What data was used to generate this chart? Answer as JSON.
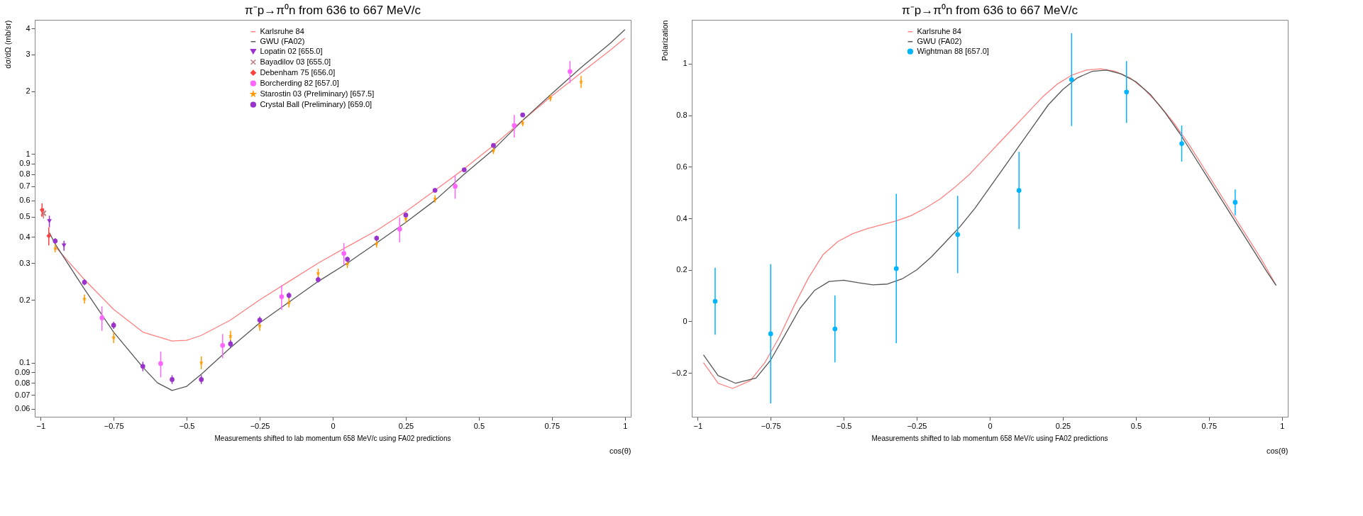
{
  "chart_data": [
    {
      "type": "scatter",
      "title": "π⁻p→π⁰n from 636 to 667 MeV/c",
      "xlabel": "cos(θ)",
      "ylabel": "dσ/dΩ (mb/sr)",
      "annotations": [
        "Measurements shifted to lab momentum 658 MeV/c using FA02 predictions"
      ],
      "log": true,
      "grid": false,
      "legend": "top",
      "xlim": [
        -1.02,
        1.02
      ],
      "xticks": [
        -1,
        -0.75,
        -0.5,
        -0.25,
        0,
        0.25,
        0.5,
        0.75,
        1
      ],
      "ylim": [
        0.055,
        4.4
      ],
      "yticks": [
        0.06,
        0.07,
        0.08,
        0.09,
        0.1,
        0.2,
        0.3,
        0.4,
        0.5,
        0.6,
        0.7,
        0.8,
        0.9,
        1,
        2,
        3,
        4
      ],
      "series": [
        {
          "name": "Karlsruhe 84",
          "type": "line",
          "color": "#ff8080",
          "line_style": "solid",
          "x": [
            -0.95,
            -0.85,
            -0.75,
            -0.65,
            -0.55,
            -0.5,
            -0.45,
            -0.35,
            -0.25,
            -0.15,
            -0.05,
            0.05,
            0.15,
            0.25,
            0.35,
            0.45,
            0.55,
            0.65,
            0.75,
            0.85,
            0.95,
            1.0
          ],
          "values": [
            0.36,
            0.25,
            0.18,
            0.14,
            0.127,
            0.128,
            0.135,
            0.16,
            0.2,
            0.245,
            0.3,
            0.36,
            0.43,
            0.53,
            0.67,
            0.85,
            1.1,
            1.45,
            1.9,
            2.45,
            3.15,
            3.6
          ]
        },
        {
          "name": "GWU (FA02)",
          "type": "line",
          "color": "#555555",
          "line_style": "solid",
          "x": [
            -0.97,
            -0.95,
            -0.85,
            -0.75,
            -0.65,
            -0.6,
            -0.55,
            -0.5,
            -0.45,
            -0.35,
            -0.25,
            -0.15,
            -0.05,
            0.05,
            0.15,
            0.25,
            0.35,
            0.45,
            0.55,
            0.65,
            0.75,
            0.85,
            0.95,
            1.0
          ],
          "values": [
            0.42,
            0.37,
            0.225,
            0.14,
            0.095,
            0.08,
            0.0735,
            0.077,
            0.088,
            0.118,
            0.155,
            0.195,
            0.245,
            0.3,
            0.375,
            0.47,
            0.6,
            0.8,
            1.05,
            1.45,
            1.95,
            2.6,
            3.4,
            3.95
          ]
        },
        {
          "name": "Lopatin 02  [655.0]",
          "color": "#9b30d0",
          "marker": "triangle",
          "x": [
            -0.97,
            -0.92
          ],
          "values": [
            0.476,
            0.364
          ],
          "errors": [
            0.03,
            0.02
          ]
        },
        {
          "name": "Bayadilov 03  [655.0]",
          "color": "#c08080",
          "marker": "cross",
          "x": [
            -0.99
          ],
          "values": [
            0.52
          ],
          "errors": [
            0.03
          ]
        },
        {
          "name": "Debenham 75  [656.0]",
          "color": "#ff4040",
          "marker": "diamond",
          "x": [
            -0.995,
            -0.972
          ],
          "values": [
            0.54,
            0.405
          ],
          "errors": [
            0.04,
            0.04
          ]
        },
        {
          "name": "Borcherding 82  [657.0]",
          "color": "#ff66ff",
          "marker": "circle",
          "x": [
            -0.79,
            -0.589,
            -0.377,
            -0.175,
            0.038,
            0.229,
            0.419,
            0.621,
            0.812
          ],
          "values": [
            0.164,
            0.099,
            0.121,
            0.207,
            0.334,
            0.437,
            0.7,
            1.37,
            2.49
          ],
          "errors": [
            0.022,
            0.014,
            0.016,
            0.028,
            0.04,
            0.06,
            0.09,
            0.17,
            0.3
          ]
        },
        {
          "name": "Starostin 03 (Preliminary)  [657.5]",
          "color": "#ff9900",
          "marker": "star",
          "x": [
            -0.95,
            -0.85,
            -0.75,
            -0.45,
            -0.35,
            -0.25,
            -0.15,
            -0.05,
            0.05,
            0.15,
            0.25,
            0.35,
            0.55,
            0.65,
            0.745,
            0.85
          ],
          "values": [
            0.353,
            0.202,
            0.132,
            0.1,
            0.134,
            0.15,
            0.194,
            0.268,
            0.298,
            0.372,
            0.49,
            0.61,
            1.04,
            1.41,
            1.86,
            2.22
          ],
          "errors": [
            0.015,
            0.01,
            0.008,
            0.007,
            0.008,
            0.008,
            0.01,
            0.014,
            0.014,
            0.016,
            0.02,
            0.025,
            0.04,
            0.05,
            0.07,
            0.15
          ]
        },
        {
          "name": "Crystal Ball (Preliminary)  [659.0]",
          "color": "#9933cc",
          "marker": "circle",
          "x": [
            -0.95,
            -0.85,
            -0.75,
            -0.65,
            -0.55,
            -0.45,
            -0.35,
            -0.25,
            -0.15,
            -0.05,
            0.05,
            0.15,
            0.25,
            0.35,
            0.45,
            0.55,
            0.65
          ],
          "values": [
            0.383,
            0.243,
            0.151,
            0.096,
            0.083,
            0.083,
            0.123,
            0.16,
            0.21,
            0.25,
            0.313,
            0.395,
            0.51,
            0.67,
            0.84,
            1.1,
            1.54
          ],
          "errors": [
            0.012,
            0.008,
            0.006,
            0.005,
            0.004,
            0.004,
            0.005,
            0.006,
            0.007,
            0.008,
            0.009,
            0.011,
            0.013,
            0.016,
            0.02,
            0.025,
            0.035
          ]
        }
      ]
    },
    {
      "type": "scatter",
      "title": "π⁻p→π⁰n from 636 to 667 MeV/c",
      "xlabel": "cos(θ)",
      "ylabel": "Polarization",
      "annotations": [
        "Measurements shifted to lab momentum 658 MeV/c using FA02 predictions"
      ],
      "grid": false,
      "legend": "top",
      "xlim": [
        -1.02,
        1.02
      ],
      "xticks": [
        -1,
        -0.75,
        -0.5,
        -0.25,
        0,
        0.25,
        0.5,
        0.75,
        1
      ],
      "ylim": [
        -0.37,
        1.17
      ],
      "yticks": [
        -0.2,
        0,
        0.2,
        0.4,
        0.6,
        0.8,
        1
      ],
      "series": [
        {
          "name": "Karlsruhe 84",
          "type": "line",
          "color": "#ff8080",
          "line_style": "solid",
          "x": [
            -0.98,
            -0.93,
            -0.88,
            -0.82,
            -0.77,
            -0.72,
            -0.67,
            -0.62,
            -0.57,
            -0.52,
            -0.47,
            -0.42,
            -0.37,
            -0.32,
            -0.27,
            -0.22,
            -0.17,
            -0.12,
            -0.07,
            -0.02,
            0.03,
            0.08,
            0.13,
            0.18,
            0.23,
            0.28,
            0.33,
            0.38,
            0.43,
            0.48,
            0.53,
            0.58,
            0.63,
            0.68,
            0.73,
            0.78,
            0.83,
            0.88,
            0.93,
            0.98
          ],
          "values": [
            -0.16,
            -0.24,
            -0.26,
            -0.23,
            -0.16,
            -0.06,
            0.06,
            0.17,
            0.26,
            0.31,
            0.34,
            0.36,
            0.375,
            0.39,
            0.41,
            0.44,
            0.475,
            0.52,
            0.57,
            0.63,
            0.69,
            0.75,
            0.81,
            0.87,
            0.92,
            0.955,
            0.975,
            0.98,
            0.97,
            0.945,
            0.9,
            0.84,
            0.77,
            0.69,
            0.6,
            0.51,
            0.42,
            0.33,
            0.24,
            0.14
          ]
        },
        {
          "name": "GWU (FA02)",
          "type": "line",
          "color": "#555555",
          "line_style": "solid",
          "x": [
            -0.98,
            -0.93,
            -0.87,
            -0.8,
            -0.75,
            -0.7,
            -0.65,
            -0.6,
            -0.55,
            -0.5,
            -0.45,
            -0.4,
            -0.35,
            -0.3,
            -0.25,
            -0.2,
            -0.15,
            -0.1,
            -0.05,
            0,
            0.05,
            0.1,
            0.15,
            0.2,
            0.25,
            0.3,
            0.35,
            0.4,
            0.45,
            0.5,
            0.55,
            0.6,
            0.65,
            0.7,
            0.75,
            0.8,
            0.85,
            0.9,
            0.95,
            0.98
          ],
          "values": [
            -0.13,
            -0.21,
            -0.24,
            -0.22,
            -0.15,
            -0.05,
            0.05,
            0.12,
            0.155,
            0.16,
            0.15,
            0.142,
            0.145,
            0.165,
            0.2,
            0.25,
            0.31,
            0.37,
            0.44,
            0.52,
            0.6,
            0.68,
            0.76,
            0.84,
            0.9,
            0.945,
            0.97,
            0.975,
            0.96,
            0.93,
            0.88,
            0.81,
            0.73,
            0.64,
            0.55,
            0.46,
            0.37,
            0.28,
            0.19,
            0.14
          ]
        },
        {
          "name": "Wightman 88  [657.0]",
          "color": "#00b4ff",
          "marker": "circle",
          "x": [
            -0.94,
            -0.75,
            -0.53,
            -0.32,
            -0.11,
            0.1,
            0.28,
            0.468,
            0.657,
            0.84
          ],
          "values": [
            0.078,
            -0.048,
            -0.029,
            0.205,
            0.337,
            0.508,
            0.938,
            0.89,
            0.69,
            0.462
          ],
          "errors": [
            0.13,
            0.27,
            0.13,
            0.29,
            0.15,
            0.15,
            0.18,
            0.12,
            0.07,
            0.05
          ]
        }
      ]
    }
  ]
}
